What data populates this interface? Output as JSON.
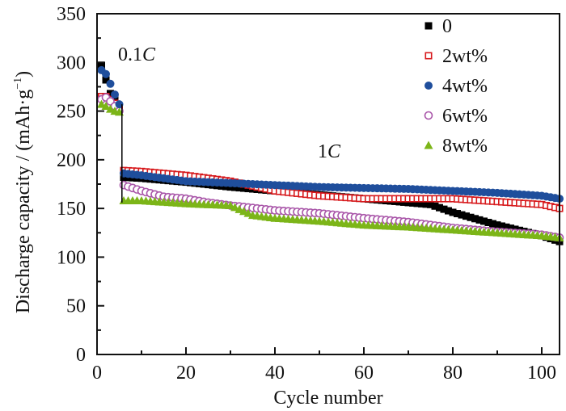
{
  "chart_data": {
    "type": "scatter",
    "title": "",
    "xlabel": "Cycle number",
    "ylabel": "Discharge capacity / (mAh·g⁻¹)",
    "ylabel_parts": {
      "main": "Discharge capacity / (mAh·g",
      "sup": "−1",
      "close": ")"
    },
    "xlim": [
      0,
      104
    ],
    "ylim": [
      0,
      350
    ],
    "xticks": [
      0,
      20,
      40,
      60,
      80,
      100
    ],
    "xticks_minor": [
      10,
      30,
      50,
      70,
      90
    ],
    "yticks": [
      0,
      50,
      100,
      150,
      200,
      250,
      300,
      350
    ],
    "yticks_minor": [
      25,
      75,
      125,
      175,
      225,
      275,
      325
    ],
    "grid": false,
    "legend_position": "top-right",
    "annotations": [
      {
        "text_main": "0.1",
        "text_italic": "C",
        "x": 5,
        "y": 305
      },
      {
        "text_main": "1",
        "text_italic": "C",
        "x": 50,
        "y": 200
      }
    ],
    "series": [
      {
        "name": "0",
        "marker": "square-filled",
        "color": "#000000",
        "anchors": [
          [
            1,
            297
          ],
          [
            2,
            282
          ],
          [
            3,
            268
          ],
          [
            4,
            262
          ],
          [
            5,
            252
          ],
          [
            6,
            182
          ],
          [
            10,
            181
          ],
          [
            20,
            177
          ],
          [
            30,
            172
          ],
          [
            40,
            168
          ],
          [
            50,
            164
          ],
          [
            60,
            160
          ],
          [
            70,
            156
          ],
          [
            75,
            154
          ],
          [
            80,
            146
          ],
          [
            90,
            133
          ],
          [
            100,
            122
          ],
          [
            104,
            116
          ]
        ]
      },
      {
        "name": "2wt%",
        "marker": "square-open",
        "color": "#d7191c",
        "anchors": [
          [
            1,
            265
          ],
          [
            2,
            265
          ],
          [
            3,
            262
          ],
          [
            4,
            258
          ],
          [
            5,
            255
          ],
          [
            6,
            189
          ],
          [
            10,
            188
          ],
          [
            20,
            184
          ],
          [
            30,
            178
          ],
          [
            40,
            168
          ],
          [
            50,
            163
          ],
          [
            60,
            160
          ],
          [
            70,
            160
          ],
          [
            80,
            160
          ],
          [
            90,
            157
          ],
          [
            100,
            154
          ],
          [
            104,
            150
          ]
        ]
      },
      {
        "name": "4wt%",
        "marker": "circle-filled",
        "color": "#1f4e9c",
        "anchors": [
          [
            1,
            292
          ],
          [
            2,
            288
          ],
          [
            3,
            278
          ],
          [
            4,
            267
          ],
          [
            5,
            257
          ],
          [
            6,
            186
          ],
          [
            10,
            184
          ],
          [
            20,
            178
          ],
          [
            30,
            176
          ],
          [
            40,
            174
          ],
          [
            50,
            172
          ],
          [
            60,
            171
          ],
          [
            70,
            170
          ],
          [
            80,
            168
          ],
          [
            90,
            166
          ],
          [
            100,
            163
          ],
          [
            104,
            160
          ]
        ]
      },
      {
        "name": "6wt%",
        "marker": "circle-open",
        "color": "#a956a9",
        "anchors": [
          [
            1,
            262
          ],
          [
            2,
            264
          ],
          [
            3,
            260
          ],
          [
            4,
            255
          ],
          [
            5,
            250
          ],
          [
            6,
            174
          ],
          [
            10,
            168
          ],
          [
            15,
            162
          ],
          [
            20,
            160
          ],
          [
            25,
            156
          ],
          [
            30,
            153
          ],
          [
            40,
            148
          ],
          [
            50,
            145
          ],
          [
            60,
            140
          ],
          [
            70,
            136
          ],
          [
            80,
            130
          ],
          [
            90,
            126
          ],
          [
            100,
            123
          ],
          [
            104,
            120
          ]
        ]
      },
      {
        "name": "8wt%",
        "marker": "triangle-filled",
        "color": "#7cb518",
        "anchors": [
          [
            1,
            257
          ],
          [
            2,
            255
          ],
          [
            3,
            252
          ],
          [
            4,
            250
          ],
          [
            5,
            249
          ],
          [
            6,
            158
          ],
          [
            10,
            158
          ],
          [
            20,
            155
          ],
          [
            30,
            153
          ],
          [
            35,
            143
          ],
          [
            40,
            140
          ],
          [
            50,
            137
          ],
          [
            60,
            133
          ],
          [
            70,
            131
          ],
          [
            80,
            128
          ],
          [
            90,
            125
          ],
          [
            100,
            122
          ],
          [
            104,
            120
          ]
        ]
      }
    ],
    "cycles": {
      "start": 1,
      "end": 104
    }
  }
}
